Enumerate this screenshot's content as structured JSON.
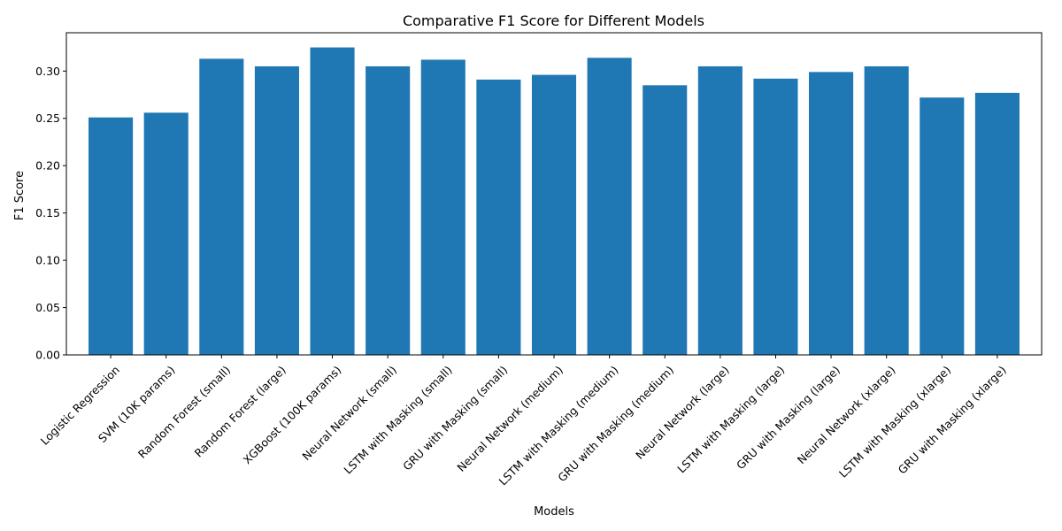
{
  "chart_data": {
    "type": "bar",
    "title": "Comparative F1 Score for Different Models",
    "xlabel": "Models",
    "ylabel": "F1 Score",
    "ylim": [
      0,
      0.3405
    ],
    "yticks": [
      "0.00",
      "0.05",
      "0.10",
      "0.15",
      "0.20",
      "0.25",
      "0.30"
    ],
    "bar_color": "#1f77b4",
    "grid": false,
    "categories": [
      "Logistic Regression",
      "SVM (10K params)",
      "Random Forest (small)",
      "Random Forest (large)",
      "XGBoost (100K params)",
      "Neural Network (small)",
      "LSTM with Masking (small)",
      "GRU with Masking (small)",
      "Neural Network (medium)",
      "LSTM with Masking (medium)",
      "GRU with Masking (medium)",
      "Neural Network (large)",
      "LSTM with Masking (large)",
      "GRU with Masking (large)",
      "Neural Network (xlarge)",
      "LSTM with Masking (xlarge)",
      "GRU with Masking (xlarge)"
    ],
    "values": [
      0.251,
      0.256,
      0.313,
      0.305,
      0.325,
      0.305,
      0.312,
      0.291,
      0.296,
      0.314,
      0.285,
      0.305,
      0.292,
      0.299,
      0.305,
      0.272,
      0.277
    ]
  }
}
